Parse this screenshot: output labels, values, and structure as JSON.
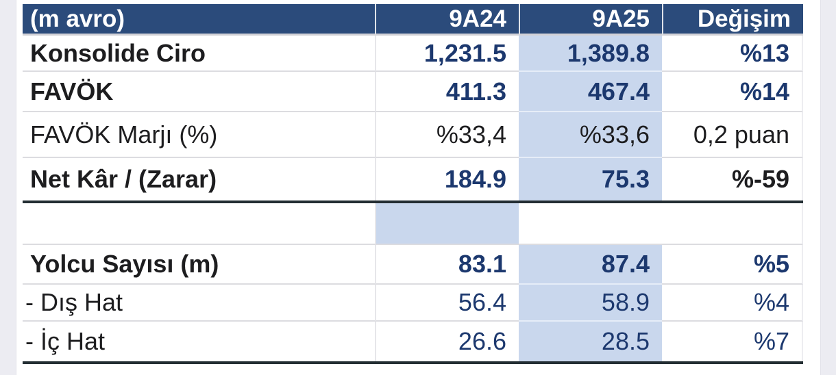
{
  "report_table": {
    "unit_header": "(m avro)",
    "period_headers": [
      "9A24",
      "9A25"
    ],
    "change_header": "Değişim",
    "rows": [
      {
        "label": "Konsolide Ciro",
        "p9A24": "1,231.5",
        "p9A25": "1,389.8",
        "change": "%13"
      },
      {
        "label": "FAVÖK",
        "p9A24": "411.3",
        "p9A25": "467.4",
        "change": "%14"
      },
      {
        "label": "FAVÖK Marjı (%)",
        "p9A24": "%33,4",
        "p9A25": "%33,6",
        "change": "0,2 puan"
      },
      {
        "label": "Net Kâr / (Zarar)",
        "p9A24": "184.9",
        "p9A25": "75.3",
        "change": "%-59"
      },
      {
        "label": "",
        "p9A24": "",
        "p9A25": "",
        "change": ""
      },
      {
        "label": "Yolcu Sayısı (m)",
        "p9A24": "83.1",
        "p9A25": "87.4",
        "change": "%5"
      },
      {
        "label": "- Dış Hat",
        "p9A24": "56.4",
        "p9A25": "58.9",
        "change": "%4"
      },
      {
        "label": "- İç Hat",
        "p9A24": "26.6",
        "p9A25": "28.5",
        "change": "%7"
      }
    ],
    "colors": {
      "header_background": "#2b4b7b",
      "header_text": "#ffffff",
      "highlight_column_background": "#c9d7ed",
      "value_navy_text": "#1c386e",
      "black_text": "#1d1d1f",
      "gridline": "#dcdce0",
      "section_divider": "#232e33",
      "page_margin": "#ececf2"
    }
  }
}
